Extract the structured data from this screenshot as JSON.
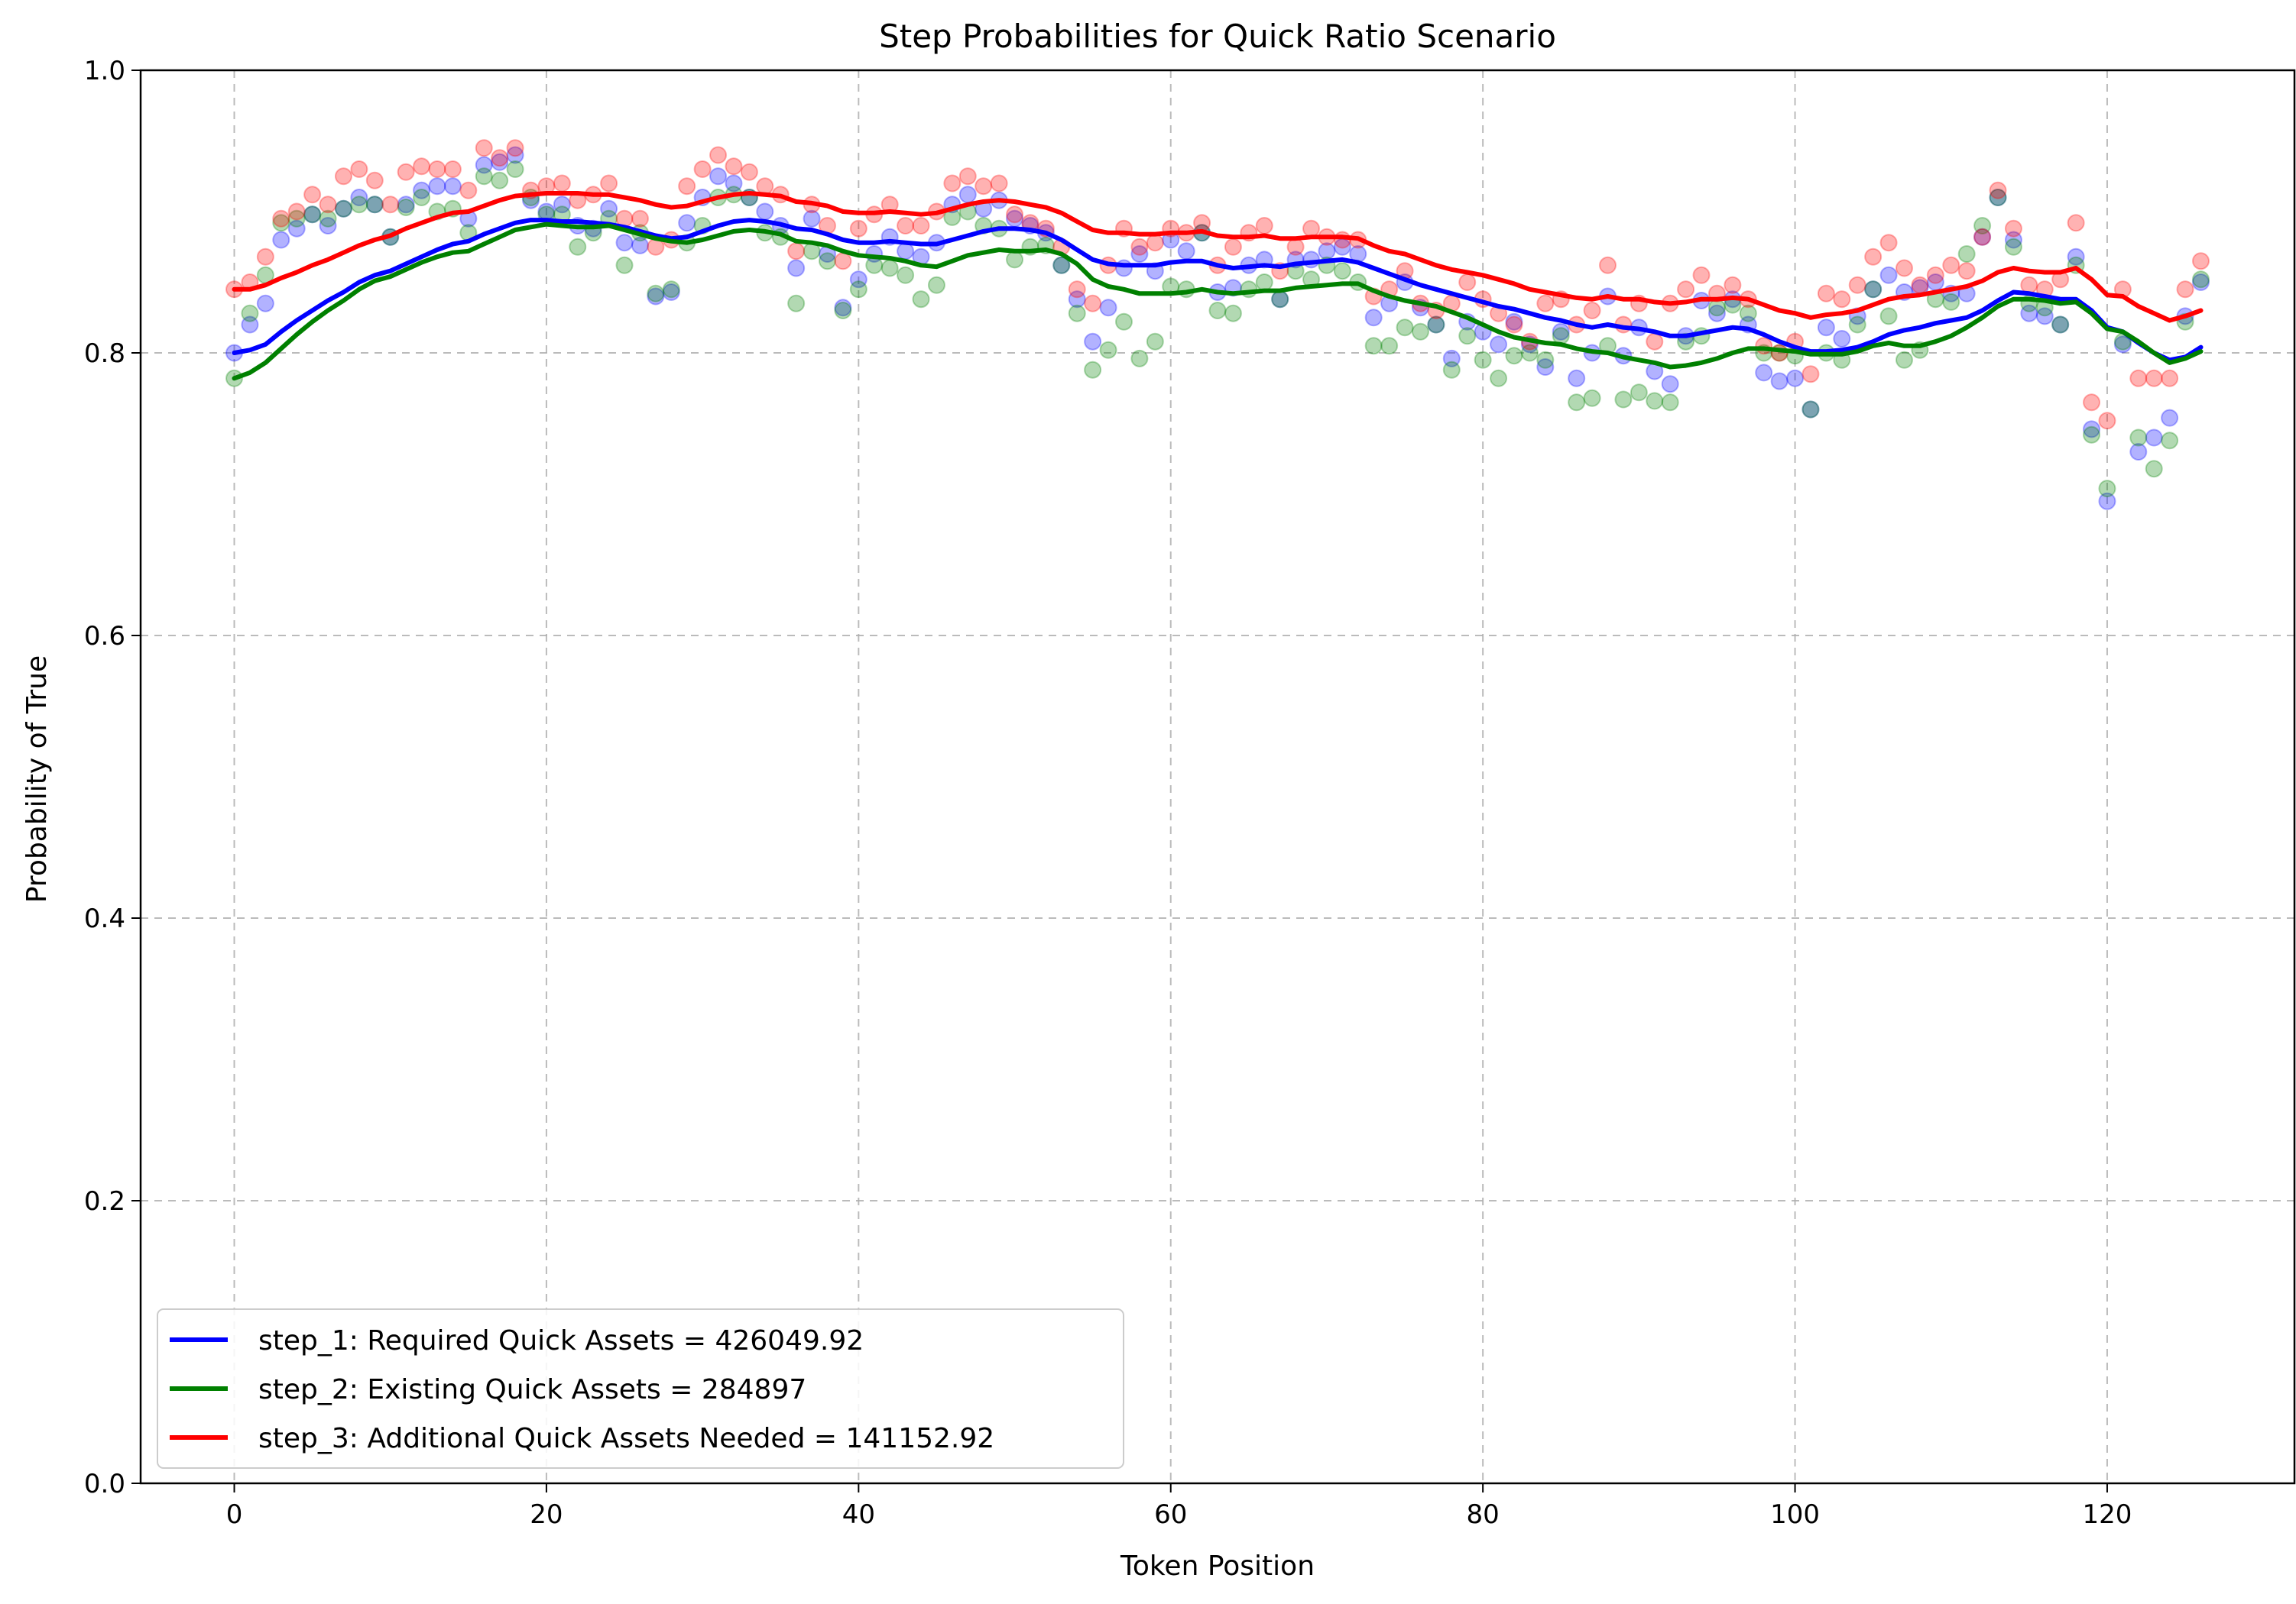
{
  "chart_data": {
    "type": "line+scatter",
    "title": "Step Probabilities for Quick Ratio Scenario",
    "xlabel": "Token Position",
    "ylabel": "Probability of True",
    "xlim": [
      -6,
      132
    ],
    "ylim": [
      0.0,
      1.0
    ],
    "xticks": [
      0,
      20,
      40,
      60,
      80,
      100,
      120
    ],
    "xtick_labels": [
      "0",
      "20",
      "40",
      "60",
      "80",
      "100",
      "120"
    ],
    "yticks": [
      0.0,
      0.2,
      0.4,
      0.6,
      0.8,
      1.0
    ],
    "ytick_labels": [
      "0.0",
      "0.2",
      "0.4",
      "0.6",
      "0.8",
      "1.0"
    ],
    "grid": true,
    "legend_position": "lower-left",
    "series": [
      {
        "name": "step_1: Required Quick Assets = 426049.92",
        "color": "#0000ff",
        "points": [
          0.8,
          0.82,
          0.835,
          0.88,
          0.888,
          0.898,
          0.89,
          0.902,
          0.91,
          0.905,
          0.882,
          0.905,
          0.915,
          0.918,
          0.918,
          0.895,
          0.933,
          0.935,
          0.94,
          0.908,
          0.9,
          0.905,
          0.89,
          0.888,
          0.902,
          0.878,
          0.876,
          0.84,
          0.843,
          0.892,
          0.91,
          0.925,
          0.92,
          0.91,
          0.9,
          0.89,
          0.86,
          0.895,
          0.87,
          0.832,
          0.852,
          0.87,
          0.882,
          0.872,
          0.868,
          0.878,
          0.905,
          0.912,
          0.902,
          0.908,
          0.895,
          0.89,
          0.885,
          0.862,
          0.838,
          0.808,
          0.832,
          0.86,
          0.87,
          0.858,
          0.88,
          0.872,
          0.885,
          0.843,
          0.846,
          0.862,
          0.866,
          0.838,
          0.866,
          0.866,
          0.872,
          0.875,
          0.87,
          0.825,
          0.835,
          0.85,
          0.832,
          0.82,
          0.796,
          0.822,
          0.815,
          0.806,
          0.822,
          0.806,
          0.79,
          0.815,
          0.782,
          0.8,
          0.84,
          0.798,
          0.818,
          0.787,
          0.778,
          0.812,
          0.837,
          0.828,
          0.838,
          0.82,
          0.786,
          0.78,
          0.782,
          0.76,
          0.818,
          0.81,
          0.826,
          0.845,
          0.855,
          0.843,
          0.846,
          0.85,
          0.842,
          0.842,
          0.882,
          0.91,
          0.88,
          0.828,
          0.826,
          0.82,
          0.868,
          0.746,
          0.695,
          0.806,
          0.73,
          0.74,
          0.754,
          0.826,
          0.85
        ],
        "smoothed": [
          0.8,
          0.802,
          0.806,
          0.815,
          0.823,
          0.83,
          0.837,
          0.843,
          0.85,
          0.855,
          0.858,
          0.863,
          0.868,
          0.873,
          0.877,
          0.879,
          0.884,
          0.888,
          0.892,
          0.894,
          0.894,
          0.893,
          0.893,
          0.892,
          0.891,
          0.889,
          0.886,
          0.883,
          0.881,
          0.882,
          0.886,
          0.89,
          0.893,
          0.894,
          0.893,
          0.891,
          0.888,
          0.887,
          0.884,
          0.88,
          0.878,
          0.878,
          0.879,
          0.878,
          0.877,
          0.877,
          0.88,
          0.883,
          0.886,
          0.888,
          0.888,
          0.887,
          0.885,
          0.88,
          0.873,
          0.866,
          0.863,
          0.862,
          0.862,
          0.862,
          0.864,
          0.865,
          0.865,
          0.862,
          0.86,
          0.861,
          0.862,
          0.861,
          0.863,
          0.864,
          0.865,
          0.866,
          0.864,
          0.86,
          0.856,
          0.852,
          0.848,
          0.845,
          0.842,
          0.839,
          0.836,
          0.833,
          0.831,
          0.828,
          0.825,
          0.823,
          0.82,
          0.818,
          0.82,
          0.818,
          0.817,
          0.815,
          0.812,
          0.812,
          0.814,
          0.816,
          0.818,
          0.817,
          0.813,
          0.808,
          0.804,
          0.801,
          0.801,
          0.802,
          0.804,
          0.808,
          0.813,
          0.816,
          0.818,
          0.821,
          0.823,
          0.825,
          0.83,
          0.837,
          0.843,
          0.842,
          0.84,
          0.838,
          0.838,
          0.83,
          0.818,
          0.815,
          0.807,
          0.8,
          0.795,
          0.797,
          0.804
        ]
      },
      {
        "name": "step_2: Existing Quick Assets = 284897",
        "color": "#008000",
        "points": [
          0.782,
          0.828,
          0.855,
          0.892,
          0.895,
          0.898,
          0.895,
          0.902,
          0.905,
          0.905,
          0.882,
          0.903,
          0.91,
          0.9,
          0.902,
          0.885,
          0.925,
          0.922,
          0.93,
          0.91,
          0.898,
          0.898,
          0.875,
          0.885,
          0.895,
          0.862,
          0.885,
          0.842,
          0.845,
          0.878,
          0.89,
          0.91,
          0.912,
          0.91,
          0.885,
          0.882,
          0.835,
          0.872,
          0.865,
          0.83,
          0.845,
          0.862,
          0.86,
          0.855,
          0.838,
          0.848,
          0.896,
          0.9,
          0.89,
          0.888,
          0.866,
          0.875,
          0.876,
          0.862,
          0.828,
          0.788,
          0.802,
          0.822,
          0.796,
          0.808,
          0.847,
          0.845,
          0.885,
          0.83,
          0.828,
          0.845,
          0.85,
          0.838,
          0.858,
          0.852,
          0.862,
          0.858,
          0.85,
          0.805,
          0.805,
          0.818,
          0.815,
          0.82,
          0.788,
          0.812,
          0.795,
          0.782,
          0.798,
          0.8,
          0.795,
          0.812,
          0.765,
          0.768,
          0.805,
          0.767,
          0.772,
          0.766,
          0.765,
          0.808,
          0.812,
          0.832,
          0.834,
          0.828,
          0.8,
          0.8,
          0.798,
          0.76,
          0.8,
          0.795,
          0.82,
          0.845,
          0.826,
          0.795,
          0.802,
          0.838,
          0.836,
          0.87,
          0.89,
          0.91,
          0.875,
          0.835,
          0.832,
          0.82,
          0.862,
          0.742,
          0.704,
          0.808,
          0.74,
          0.718,
          0.738,
          0.822,
          0.852
        ],
        "smoothed": [
          0.782,
          0.786,
          0.793,
          0.803,
          0.813,
          0.822,
          0.83,
          0.837,
          0.845,
          0.851,
          0.854,
          0.859,
          0.864,
          0.868,
          0.871,
          0.872,
          0.877,
          0.882,
          0.887,
          0.889,
          0.891,
          0.89,
          0.889,
          0.889,
          0.89,
          0.887,
          0.884,
          0.881,
          0.879,
          0.878,
          0.88,
          0.883,
          0.886,
          0.887,
          0.886,
          0.884,
          0.879,
          0.878,
          0.876,
          0.872,
          0.869,
          0.868,
          0.867,
          0.865,
          0.862,
          0.861,
          0.865,
          0.869,
          0.871,
          0.873,
          0.872,
          0.872,
          0.873,
          0.87,
          0.863,
          0.852,
          0.847,
          0.845,
          0.842,
          0.842,
          0.842,
          0.843,
          0.845,
          0.843,
          0.842,
          0.843,
          0.844,
          0.844,
          0.846,
          0.847,
          0.848,
          0.849,
          0.849,
          0.844,
          0.84,
          0.837,
          0.835,
          0.833,
          0.829,
          0.825,
          0.82,
          0.815,
          0.811,
          0.809,
          0.807,
          0.806,
          0.803,
          0.801,
          0.8,
          0.797,
          0.795,
          0.793,
          0.79,
          0.791,
          0.793,
          0.796,
          0.8,
          0.803,
          0.803,
          0.802,
          0.801,
          0.799,
          0.799,
          0.799,
          0.801,
          0.805,
          0.807,
          0.805,
          0.805,
          0.808,
          0.812,
          0.818,
          0.825,
          0.833,
          0.838,
          0.838,
          0.837,
          0.835,
          0.836,
          0.828,
          0.817,
          0.815,
          0.808,
          0.8,
          0.793,
          0.796,
          0.801
        ]
      },
      {
        "name": "step_3: Additional Quick Assets Needed = 141152.92",
        "color": "#ff0000",
        "points": [
          0.845,
          0.85,
          0.868,
          0.895,
          0.9,
          0.912,
          0.905,
          0.925,
          0.93,
          0.922,
          0.905,
          0.928,
          0.932,
          0.93,
          0.93,
          0.915,
          0.945,
          0.938,
          0.945,
          0.915,
          0.918,
          0.92,
          0.908,
          0.912,
          0.92,
          0.895,
          0.895,
          0.875,
          0.88,
          0.918,
          0.93,
          0.94,
          0.932,
          0.928,
          0.918,
          0.912,
          0.872,
          0.905,
          0.89,
          0.865,
          0.888,
          0.898,
          0.905,
          0.89,
          0.89,
          0.9,
          0.92,
          0.925,
          0.918,
          0.92,
          0.898,
          0.892,
          0.888,
          0.875,
          0.845,
          0.835,
          0.862,
          0.888,
          0.875,
          0.878,
          0.888,
          0.885,
          0.892,
          0.862,
          0.875,
          0.885,
          0.89,
          0.858,
          0.875,
          0.888,
          0.882,
          0.88,
          0.88,
          0.84,
          0.845,
          0.858,
          0.835,
          0.83,
          0.835,
          0.85,
          0.838,
          0.828,
          0.82,
          0.808,
          0.835,
          0.838,
          0.82,
          0.83,
          0.862,
          0.82,
          0.835,
          0.808,
          0.835,
          0.845,
          0.855,
          0.842,
          0.848,
          0.838,
          0.805,
          0.8,
          0.808,
          0.785,
          0.842,
          0.838,
          0.848,
          0.868,
          0.878,
          0.86,
          0.848,
          0.855,
          0.862,
          0.858,
          0.882,
          0.915,
          0.888,
          0.848,
          0.845,
          0.852,
          0.892,
          0.765,
          0.752,
          0.845,
          0.782,
          0.782,
          0.782,
          0.845,
          0.865
        ],
        "smoothed": [
          0.845,
          0.845,
          0.848,
          0.853,
          0.857,
          0.862,
          0.866,
          0.871,
          0.876,
          0.88,
          0.883,
          0.888,
          0.892,
          0.896,
          0.899,
          0.9,
          0.904,
          0.908,
          0.911,
          0.912,
          0.913,
          0.913,
          0.913,
          0.912,
          0.912,
          0.91,
          0.908,
          0.905,
          0.903,
          0.904,
          0.907,
          0.91,
          0.912,
          0.913,
          0.912,
          0.911,
          0.907,
          0.906,
          0.904,
          0.9,
          0.899,
          0.899,
          0.9,
          0.899,
          0.898,
          0.899,
          0.902,
          0.905,
          0.907,
          0.908,
          0.907,
          0.905,
          0.903,
          0.899,
          0.893,
          0.887,
          0.885,
          0.885,
          0.884,
          0.884,
          0.885,
          0.885,
          0.886,
          0.883,
          0.882,
          0.882,
          0.883,
          0.881,
          0.881,
          0.882,
          0.882,
          0.882,
          0.881,
          0.876,
          0.872,
          0.87,
          0.866,
          0.862,
          0.859,
          0.857,
          0.855,
          0.852,
          0.849,
          0.845,
          0.843,
          0.841,
          0.839,
          0.838,
          0.84,
          0.838,
          0.838,
          0.836,
          0.835,
          0.836,
          0.838,
          0.838,
          0.839,
          0.838,
          0.834,
          0.83,
          0.828,
          0.825,
          0.827,
          0.828,
          0.83,
          0.834,
          0.838,
          0.84,
          0.841,
          0.843,
          0.845,
          0.847,
          0.851,
          0.857,
          0.86,
          0.858,
          0.857,
          0.857,
          0.86,
          0.852,
          0.841,
          0.84,
          0.833,
          0.828,
          0.823,
          0.826,
          0.83
        ]
      }
    ]
  }
}
